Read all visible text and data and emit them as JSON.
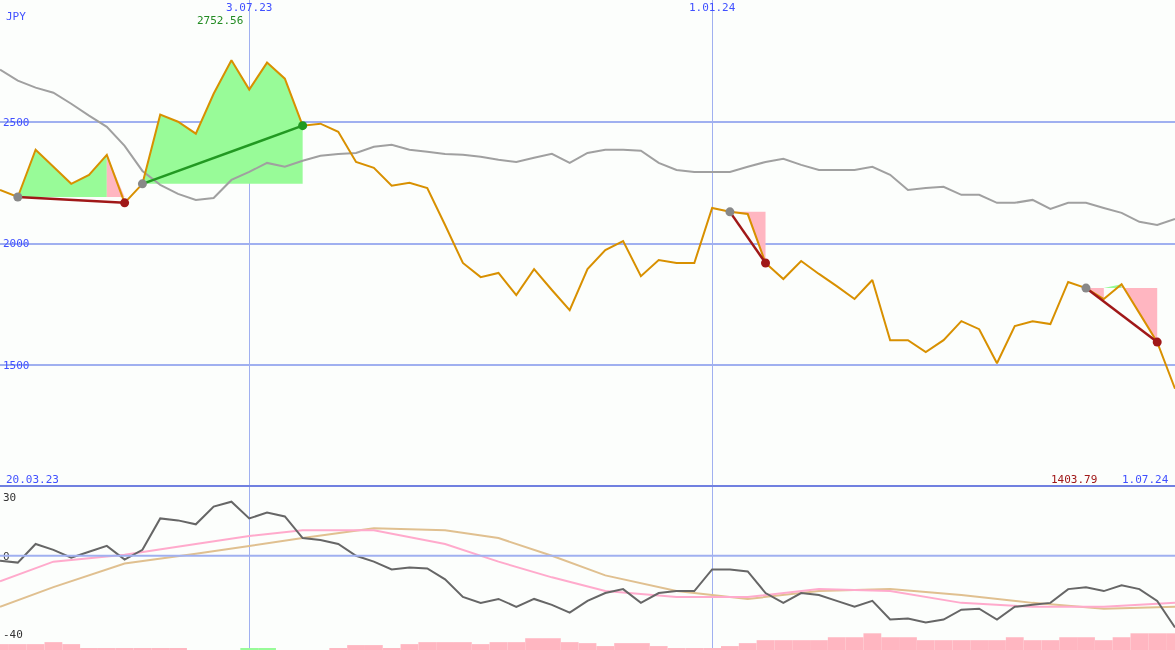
{
  "chart_data": [
    {
      "type": "line",
      "ylabel": "JPY",
      "x": [
        "2023-03-27",
        "2023-04-03",
        "2023-04-10",
        "2023-04-17",
        "2023-04-24",
        "2023-05-01",
        "2023-05-08",
        "2023-05-15",
        "2023-05-22",
        "2023-05-29",
        "2023-06-05",
        "2023-06-12",
        "2023-06-19",
        "2023-06-26",
        "2023-07-03",
        "2023-07-10",
        "2023-07-17",
        "2023-07-24",
        "2023-07-31",
        "2023-08-07",
        "2023-08-14",
        "2023-08-21",
        "2023-08-28",
        "2023-09-04",
        "2023-09-11",
        "2023-09-18",
        "2023-09-25",
        "2023-10-02",
        "2023-10-09",
        "2023-10-16",
        "2023-10-23",
        "2023-10-30",
        "2023-11-06",
        "2023-11-13",
        "2023-11-20",
        "2023-11-27",
        "2023-12-04",
        "2023-12-11",
        "2023-12-18",
        "2023-12-25",
        "2024-01-01",
        "2024-01-08",
        "2024-01-15",
        "2024-01-22",
        "2024-01-29",
        "2024-02-05",
        "2024-02-12",
        "2024-02-19",
        "2024-02-26",
        "2024-03-04",
        "2024-03-11",
        "2024-03-18",
        "2024-03-25",
        "2024-04-01",
        "2024-04-08",
        "2024-04-15",
        "2024-04-22",
        "2024-04-29",
        "2024-05-06",
        "2024-05-13",
        "2024-05-20",
        "2024-05-27",
        "2024-06-03",
        "2024-06-10",
        "2024-06-17",
        "2024-06-24",
        "2024-07-01"
      ],
      "series": [
        {
          "color": "#98fb98",
          "x": [
            "2023-04-03",
            "2023-04-10",
            "2023-04-17",
            "2023-04-24",
            "2023-05-01",
            "2023-05-08"
          ],
          "values": [
            null,
            null,
            null,
            null,
            null,
            null
          ],
          "upper": [
            2191,
            2385,
            2315,
            2245,
            2282,
            2364
          ],
          "lower": [
            2191,
            2191,
            2191,
            2191,
            2191,
            2191
          ]
        },
        {
          "color": "#ffb6c1",
          "x": [
            "2023-05-08",
            "2023-05-15"
          ],
          "values": [
            null,
            null
          ],
          "upper": [
            2364,
            2191
          ],
          "lower": [
            2191,
            2191
          ]
        },
        {
          "color": "#98fb98",
          "x": [
            "2023-05-22",
            "2023-05-29",
            "2023-06-05",
            "2023-06-12",
            "2023-06-19",
            "2023-06-26",
            "2023-07-03",
            "2023-07-10",
            "2023-07-17",
            "2023-07-24"
          ],
          "values": [
            null,
            null,
            null,
            null,
            null,
            null,
            null,
            null,
            null,
            null
          ],
          "upper": [
            2245,
            2529,
            2500,
            2451,
            2615,
            2752.56,
            2632,
            2743,
            2677,
            2484
          ],
          "lower": [
            2245,
            2245,
            2245,
            2245,
            2245,
            2245,
            2245,
            2245,
            2245,
            2245
          ]
        },
        {
          "color": "#ffb6c1",
          "x": [
            "2024-01-08",
            "2024-01-15",
            "2024-01-22"
          ],
          "values": [
            null,
            null,
            null
          ],
          "upper": [
            2130,
            2130,
            2130
          ],
          "lower": [
            2130,
            2121,
            1920
          ]
        },
        {
          "color": "#ffb6c1",
          "x": [
            "2024-05-27",
            "2024-06-03"
          ],
          "values": [
            null,
            null
          ],
          "upper": [
            1817,
            1817
          ],
          "lower": [
            1817,
            1772
          ]
        },
        {
          "color": "#98fb98",
          "x": [
            "2024-06-03",
            "2024-06-10"
          ],
          "values": [
            null,
            null
          ],
          "upper": [
            1817,
            1833
          ],
          "lower": [
            1817,
            1817
          ]
        },
        {
          "color": "#ffb6c1",
          "x": [
            "2024-06-10",
            "2024-06-17",
            "2024-06-24"
          ],
          "values": [
            null,
            null,
            null
          ],
          "upper": [
            1817,
            1817,
            1817
          ],
          "lower": [
            1833,
            1714,
            1595
          ]
        },
        {
          "color": "#a0a0a0",
          "values": [
            2714,
            2669,
            2640,
            2619,
            2574,
            2525,
            2479,
            2401,
            2298,
            2241,
            2204,
            2179,
            2187,
            2261,
            2294,
            2331,
            2315,
            2340,
            2360,
            2368,
            2372,
            2397,
            2405,
            2385,
            2377,
            2368,
            2364,
            2356,
            2344,
            2335,
            2352,
            2368,
            2331,
            2372,
            2385,
            2385,
            2381,
            2331,
            2302,
            2294,
            2294,
            2294,
            2315,
            2335,
            2348,
            2323,
            2302,
            2302,
            2302,
            2315,
            2282,
            2220,
            2228,
            2233,
            2200,
            2200,
            2167,
            2167,
            2179,
            2142,
            2167,
            2167,
            2146,
            2126,
            2089,
            2076,
            2101
          ]
        },
        {
          "color": "#d89000",
          "values": [
            2220,
            2191,
            2385,
            2315,
            2245,
            2282,
            2364,
            2167,
            2245,
            2529,
            2500,
            2451,
            2615,
            2752.56,
            2632,
            2743,
            2677,
            2484,
            2492,
            2459,
            2335,
            2311,
            2237,
            2249,
            2228,
            2076,
            1920,
            1862,
            1879,
            1788,
            1895,
            1809,
            1726,
            1895,
            1973,
            2010,
            1866,
            1932,
            1920,
            1920,
            2146,
            2130,
            2121,
            1920,
            1854,
            1928,
            1875,
            1825,
            1772,
            1850,
            1603,
            1603,
            1554,
            1603,
            1681,
            1648,
            1508,
            1661,
            1681,
            1669,
            1842,
            1817,
            1772,
            1833,
            1714,
            1595,
            1403.79
          ]
        },
        {
          "color": "#229922",
          "marker": "circle",
          "colors": [
            "#888888",
            "#229922"
          ],
          "x": [
            "2023-05-22",
            "2023-07-24"
          ],
          "values": [
            2245,
            2484
          ]
        },
        {
          "color": "#a01818",
          "marker": "circle",
          "colors": [
            "#888888",
            "#a01818"
          ],
          "x": [
            "2023-04-03",
            "2023-05-15"
          ],
          "values": [
            2191,
            2167
          ]
        },
        {
          "color": "#a01818",
          "marker": "circle",
          "colors": [
            "#888888",
            "#a01818"
          ],
          "x": [
            "2024-01-08",
            "2024-01-22"
          ],
          "values": [
            2130,
            1920
          ]
        },
        {
          "color": "#a01818",
          "marker": "circle",
          "colors": [
            "#888888",
            "#a01818"
          ],
          "x": [
            "2024-05-27",
            "2024-06-24"
          ],
          "values": [
            1817,
            1595
          ]
        }
      ],
      "xlim": [
        "2023-03-27",
        "2024-07-01"
      ],
      "xticks": [
        {
          "value": "2023-07-03",
          "label": "3.07.23"
        },
        {
          "value": "2024-01-01",
          "label": "1.01.24"
        }
      ],
      "ylim": [
        1000,
        3000
      ],
      "yticks": [
        1500,
        2000,
        2500
      ],
      "grid": true,
      "annotations": [
        "2752.56",
        "1403.79",
        "20.03.23",
        "1.07.24"
      ]
    },
    {
      "type": "line",
      "x": [
        "2023-03-27",
        "2023-04-03",
        "2023-04-10",
        "2023-04-17",
        "2023-04-24",
        "2023-05-01",
        "2023-05-08",
        "2023-05-15",
        "2023-05-22",
        "2023-05-29",
        "2023-06-05",
        "2023-06-12",
        "2023-06-19",
        "2023-06-26",
        "2023-07-03",
        "2023-07-10",
        "2023-07-17",
        "2023-07-24",
        "2023-07-31",
        "2023-08-07",
        "2023-08-14",
        "2023-08-21",
        "2023-08-28",
        "2023-09-04",
        "2023-09-11",
        "2023-09-18",
        "2023-09-25",
        "2023-10-02",
        "2023-10-09",
        "2023-10-16",
        "2023-10-23",
        "2023-10-30",
        "2023-11-06",
        "2023-11-13",
        "2023-11-20",
        "2023-11-27",
        "2023-12-04",
        "2023-12-11",
        "2023-12-18",
        "2023-12-25",
        "2024-01-01",
        "2024-01-08",
        "2024-01-15",
        "2024-01-22",
        "2024-01-29",
        "2024-02-05",
        "2024-02-12",
        "2024-02-19",
        "2024-02-26",
        "2024-03-04",
        "2024-03-11",
        "2024-03-18",
        "2024-03-25",
        "2024-04-01",
        "2024-04-08",
        "2024-04-15",
        "2024-04-22",
        "2024-04-29",
        "2024-05-06",
        "2024-05-13",
        "2024-05-20",
        "2024-05-27",
        "2024-06-03",
        "2024-06-10",
        "2024-06-17",
        "2024-06-24",
        "2024-07-01"
      ],
      "series": [
        {
          "type": "bar",
          "colors": [
            "#ffb6c1",
            "#ffb6c1",
            "#ffb6c1",
            "#ffb6c1",
            "#ffb6c1",
            "#ffb6c1",
            "#ffb6c1",
            "#ffb6c1",
            "#ffb6c1",
            "#ffb6c1",
            "#ffb6c1",
            "#ffb6c1",
            "#ffb6c1",
            "#ffb6c1",
            "#98fb98",
            "#98fb98",
            "#ffb6c1",
            "#ffb6c1",
            "#ffb6c1",
            "#ffb6c1",
            "#ffb6c1",
            "#ffb6c1",
            "#ffb6c1",
            "#ffb6c1",
            "#ffb6c1",
            "#ffb6c1",
            "#ffb6c1",
            "#ffb6c1",
            "#ffb6c1",
            "#ffb6c1",
            "#ffb6c1",
            "#ffb6c1",
            "#ffb6c1",
            "#ffb6c1",
            "#ffb6c1",
            "#ffb6c1",
            "#ffb6c1",
            "#ffb6c1",
            "#ffb6c1",
            "#ffb6c1",
            "#ffb6c1",
            "#ffb6c1",
            "#ffb6c1",
            "#ffb6c1",
            "#ffb6c1",
            "#ffb6c1",
            "#ffb6c1",
            "#ffb6c1",
            "#ffb6c1",
            "#ffb6c1",
            "#ffb6c1",
            "#ffb6c1",
            "#ffb6c1",
            "#ffb6c1",
            "#ffb6c1",
            "#ffb6c1",
            "#ffb6c1",
            "#ffb6c1",
            "#ffb6c1",
            "#ffb6c1",
            "#ffb6c1",
            "#ffb6c1",
            "#ffb6c1",
            "#ffb6c1",
            "#ffb6c1",
            "#ffb6c1",
            "#ffb6c1"
          ],
          "base": [
            -48,
            -48,
            -48,
            -48,
            -48,
            -48,
            -48,
            -48,
            -48,
            -48,
            -48,
            null,
            null,
            null,
            -48,
            -48,
            null,
            null,
            null,
            -48,
            -48,
            -48,
            -48,
            -48,
            -48,
            -48,
            -48,
            -48,
            -48,
            -48,
            -48,
            -48,
            -48,
            -48,
            -48,
            -48,
            -48,
            -48,
            -48,
            -48,
            -48,
            -48,
            -48,
            -48,
            -48,
            -48,
            -48,
            -48,
            -48,
            -48,
            -48,
            -48,
            -48,
            -48,
            -48,
            -48,
            -48,
            -48,
            -48,
            -48,
            -48,
            -48,
            -48,
            -48,
            -48,
            -48,
            -48
          ],
          "values": [
            3,
            3,
            3,
            4,
            3,
            1,
            1,
            1,
            1,
            1,
            1,
            null,
            null,
            null,
            1,
            1,
            null,
            null,
            null,
            1,
            2.5,
            2.5,
            1,
            3,
            4,
            4,
            4,
            3,
            4,
            4,
            6,
            6,
            4,
            3.5,
            2,
            3.5,
            3.5,
            2,
            1,
            1,
            1,
            2,
            3.5,
            5,
            5,
            5,
            5,
            6.5,
            6.5,
            8.5,
            6.5,
            6.5,
            5,
            5,
            5,
            5,
            5,
            6.5,
            5,
            5,
            6.5,
            6.5,
            5,
            6.5,
            8.5,
            8.5,
            8.5
          ]
        },
        {
          "color": "#e0c090",
          "x": [
            "2023-03-27",
            "2023-04-17",
            "2023-05-15",
            "2023-06-12",
            "2023-07-03",
            "2023-07-24",
            "2023-08-21",
            "2023-09-18",
            "2023-10-09",
            "2023-10-30",
            "2023-11-20",
            "2023-12-18",
            "2024-01-15",
            "2024-02-12",
            "2024-03-11",
            "2024-04-08",
            "2024-05-06",
            "2024-06-03",
            "2024-07-01"
          ],
          "values": [
            -26,
            -16,
            -4,
            1,
            5,
            9,
            14,
            13,
            9,
            0,
            -10,
            -18,
            -22,
            -18,
            -17,
            -20,
            -24,
            -27,
            -26
          ]
        },
        {
          "color": "#ffaacc",
          "x": [
            "2023-03-27",
            "2023-04-17",
            "2023-05-15",
            "2023-06-12",
            "2023-07-03",
            "2023-07-24",
            "2023-08-21",
            "2023-09-18",
            "2023-10-09",
            "2023-10-30",
            "2023-11-20",
            "2023-12-18",
            "2024-01-15",
            "2024-02-12",
            "2024-03-11",
            "2024-04-08",
            "2024-05-06",
            "2024-06-03",
            "2024-07-01"
          ],
          "values": [
            -13,
            -3,
            0.5,
            6,
            10,
            13,
            13,
            6,
            -3,
            -11,
            -18,
            -21,
            -21,
            -17,
            -18,
            -24,
            -26,
            -26,
            -24
          ]
        },
        {
          "color": "#666666",
          "values": [
            -2.5,
            -3.5,
            6,
            3,
            -1,
            2,
            5,
            -2,
            3,
            19,
            18,
            16,
            25,
            27.5,
            19,
            22,
            20,
            9,
            8,
            6,
            0,
            -3,
            -7,
            -6,
            -6.5,
            -12,
            -21,
            -24,
            -22,
            -26,
            -22,
            -25,
            -29,
            -23,
            -19,
            -17,
            -24,
            -19,
            -18,
            -18,
            -7,
            -7,
            -8,
            -19,
            -24,
            -19,
            -20,
            -23,
            -26,
            -23,
            -32.5,
            -32,
            -34,
            -32.5,
            -27.5,
            -27,
            -32.5,
            -26,
            -25,
            -24,
            -17,
            -16,
            -18,
            -15,
            -17,
            -23,
            -36.5
          ]
        }
      ],
      "xlim": [
        "2023-03-27",
        "2024-07-01"
      ],
      "xticks": [
        {
          "value": "2023-07-03",
          "label": null
        },
        {
          "value": "2024-01-01",
          "label": null
        }
      ],
      "ylim": [
        -48,
        35
      ],
      "yticks": [
        30,
        0,
        -40
      ],
      "grid": "x",
      "tick_labels": "y",
      "ref_lines": [
        {
          "axis": "y",
          "value": 0,
          "color": "#a0b0f0"
        }
      ]
    }
  ]
}
